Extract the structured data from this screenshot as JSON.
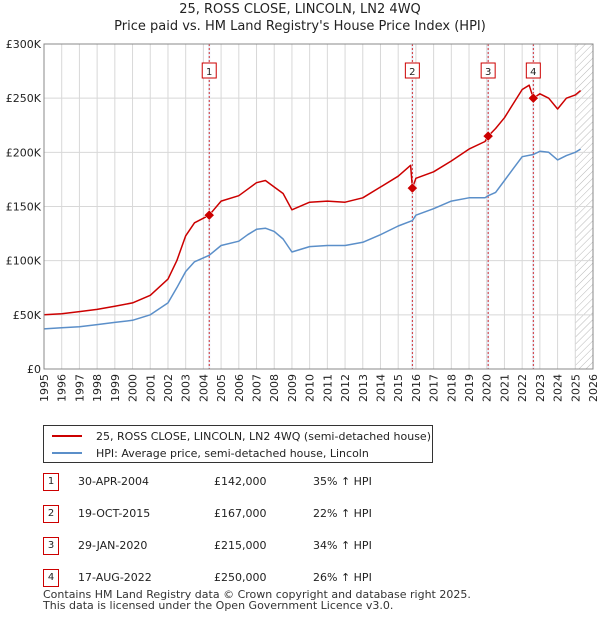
{
  "title_line1": "25, ROSS CLOSE, LINCOLN, LN2 4WQ",
  "title_line2": "Price paid vs. HM Land Registry's House Price Index (HPI)",
  "colors": {
    "property": "#cc0000",
    "hpi": "#5b8fc9",
    "shade": "#e3ebf7",
    "grid": "#d8d8d8"
  },
  "chart_data": {
    "type": "line",
    "title": "Price paid vs. HM Land Registry's House Price Index (HPI)",
    "xlim": [
      1995,
      2026
    ],
    "ylim": [
      0,
      300000
    ],
    "x_ticks": [
      "1995",
      "1996",
      "1997",
      "1998",
      "1999",
      "2000",
      "2001",
      "2002",
      "2003",
      "2004",
      "2005",
      "2006",
      "2007",
      "2008",
      "2009",
      "2010",
      "2011",
      "2012",
      "2013",
      "2014",
      "2015",
      "2016",
      "2017",
      "2018",
      "2019",
      "2020",
      "2021",
      "2022",
      "2023",
      "2024",
      "2025",
      "2026"
    ],
    "y_ticks": [
      {
        "value": 0,
        "label": "£0"
      },
      {
        "value": 50000,
        "label": "£50K"
      },
      {
        "value": 100000,
        "label": "£100K"
      },
      {
        "value": 150000,
        "label": "£150K"
      },
      {
        "value": 200000,
        "label": "£200K"
      },
      {
        "value": 250000,
        "label": "£250K"
      },
      {
        "value": 300000,
        "label": "£300K"
      }
    ],
    "shaded_region": [
      2025.0,
      2026.0
    ],
    "series": [
      {
        "name": "25, ROSS CLOSE, LINCOLN, LN2 4WQ (semi-detached house)",
        "color": "#cc0000",
        "points": [
          [
            1995,
            50000
          ],
          [
            1996,
            51000
          ],
          [
            1997,
            53000
          ],
          [
            1998,
            55000
          ],
          [
            1999,
            58000
          ],
          [
            2000,
            61000
          ],
          [
            2001,
            68000
          ],
          [
            2002,
            83000
          ],
          [
            2002.5,
            100000
          ],
          [
            2003,
            123000
          ],
          [
            2003.5,
            135000
          ],
          [
            2004.33,
            142000
          ],
          [
            2005,
            155000
          ],
          [
            2006,
            160000
          ],
          [
            2006.5,
            166000
          ],
          [
            2007,
            172000
          ],
          [
            2007.5,
            174000
          ],
          [
            2008,
            168000
          ],
          [
            2008.5,
            162000
          ],
          [
            2009,
            147000
          ],
          [
            2010,
            154000
          ],
          [
            2011,
            155000
          ],
          [
            2012,
            154000
          ],
          [
            2013,
            158000
          ],
          [
            2014,
            168000
          ],
          [
            2015,
            178000
          ],
          [
            2015.7,
            188000
          ],
          [
            2015.8,
            167000
          ],
          [
            2016,
            176000
          ],
          [
            2017,
            182000
          ],
          [
            2018,
            192000
          ],
          [
            2019,
            203000
          ],
          [
            2019.9,
            210000
          ],
          [
            2020.08,
            215000
          ],
          [
            2020.5,
            222000
          ],
          [
            2021,
            232000
          ],
          [
            2021.5,
            245000
          ],
          [
            2022,
            258000
          ],
          [
            2022.4,
            262000
          ],
          [
            2022.63,
            250000
          ],
          [
            2023,
            254000
          ],
          [
            2023.5,
            250000
          ],
          [
            2024,
            240000
          ],
          [
            2024.5,
            250000
          ],
          [
            2025,
            253000
          ],
          [
            2025.3,
            257000
          ]
        ]
      },
      {
        "name": "HPI: Average price, semi-detached house, Lincoln",
        "color": "#5b8fc9",
        "points": [
          [
            1995,
            37000
          ],
          [
            1996,
            38000
          ],
          [
            1997,
            39000
          ],
          [
            1998,
            41000
          ],
          [
            1999,
            43000
          ],
          [
            2000,
            45000
          ],
          [
            2001,
            50000
          ],
          [
            2002,
            61000
          ],
          [
            2002.5,
            75000
          ],
          [
            2003,
            90000
          ],
          [
            2003.5,
            99000
          ],
          [
            2004.33,
            105000
          ],
          [
            2005,
            114000
          ],
          [
            2006,
            118000
          ],
          [
            2006.5,
            124000
          ],
          [
            2007,
            129000
          ],
          [
            2007.5,
            130000
          ],
          [
            2008,
            127000
          ],
          [
            2008.5,
            120000
          ],
          [
            2009,
            108000
          ],
          [
            2010,
            113000
          ],
          [
            2011,
            114000
          ],
          [
            2012,
            114000
          ],
          [
            2013,
            117000
          ],
          [
            2014,
            124000
          ],
          [
            2015,
            132000
          ],
          [
            2015.8,
            137000
          ],
          [
            2016,
            142000
          ],
          [
            2017,
            148000
          ],
          [
            2018,
            155000
          ],
          [
            2019,
            158000
          ],
          [
            2019.9,
            158000
          ],
          [
            2020.08,
            160000
          ],
          [
            2020.5,
            163000
          ],
          [
            2021,
            174000
          ],
          [
            2021.5,
            185000
          ],
          [
            2022,
            196000
          ],
          [
            2022.63,
            198000
          ],
          [
            2023,
            201000
          ],
          [
            2023.5,
            200000
          ],
          [
            2024,
            193000
          ],
          [
            2024.5,
            197000
          ],
          [
            2025,
            200000
          ],
          [
            2025.3,
            203000
          ]
        ]
      }
    ],
    "sales": [
      {
        "num": "1",
        "x": 2004.33,
        "y": 142000
      },
      {
        "num": "2",
        "x": 2015.8,
        "y": 167000
      },
      {
        "num": "3",
        "x": 2020.08,
        "y": 215000
      },
      {
        "num": "4",
        "x": 2022.63,
        "y": 250000
      }
    ]
  },
  "legend": {
    "property_label": "25, ROSS CLOSE, LINCOLN, LN2 4WQ (semi-detached house)",
    "hpi_label": "HPI: Average price, semi-detached house, Lincoln"
  },
  "sales_table": [
    {
      "num": "1",
      "date": "30-APR-2004",
      "price": "£142,000",
      "hpi": "35% ↑ HPI"
    },
    {
      "num": "2",
      "date": "19-OCT-2015",
      "price": "£167,000",
      "hpi": "22% ↑ HPI"
    },
    {
      "num": "3",
      "date": "29-JAN-2020",
      "price": "£215,000",
      "hpi": "34% ↑ HPI"
    },
    {
      "num": "4",
      "date": "17-AUG-2022",
      "price": "£250,000",
      "hpi": "26% ↑ HPI"
    }
  ],
  "footer_line1": "Contains HM Land Registry data © Crown copyright and database right 2025.",
  "footer_line2": "This data is licensed under the Open Government Licence v3.0."
}
